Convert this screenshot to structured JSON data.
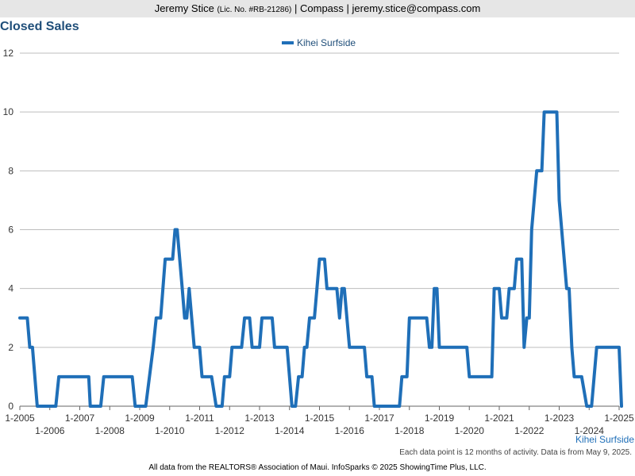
{
  "header": {
    "agent": "Jeremy Stice",
    "license": "(Lic. No. #RB-21286)",
    "brokerage_email": "| Compass | jeremy.stice@compass.com"
  },
  "chart_data": {
    "type": "line",
    "title": "Closed Sales",
    "series": [
      {
        "name": "Kihei Surfside",
        "color": "#1f6fb8",
        "points": [
          [
            2005.0,
            3
          ],
          [
            2005.25,
            3
          ],
          [
            2005.33,
            2
          ],
          [
            2005.42,
            2
          ],
          [
            2005.58,
            0
          ],
          [
            2006.2,
            0
          ],
          [
            2006.3,
            1
          ],
          [
            2007.3,
            1
          ],
          [
            2007.35,
            0
          ],
          [
            2007.7,
            0
          ],
          [
            2007.8,
            1
          ],
          [
            2008.75,
            1
          ],
          [
            2008.85,
            0
          ],
          [
            2009.2,
            0
          ],
          [
            2009.45,
            2
          ],
          [
            2009.55,
            3
          ],
          [
            2009.7,
            3
          ],
          [
            2009.85,
            5
          ],
          [
            2010.1,
            5
          ],
          [
            2010.18,
            6
          ],
          [
            2010.25,
            6
          ],
          [
            2010.42,
            4
          ],
          [
            2010.5,
            3
          ],
          [
            2010.57,
            3
          ],
          [
            2010.65,
            4
          ],
          [
            2010.82,
            2
          ],
          [
            2011.0,
            2
          ],
          [
            2011.08,
            1
          ],
          [
            2011.4,
            1
          ],
          [
            2011.55,
            0
          ],
          [
            2011.75,
            0
          ],
          [
            2011.83,
            1
          ],
          [
            2012.0,
            1
          ],
          [
            2012.08,
            2
          ],
          [
            2012.4,
            2
          ],
          [
            2012.5,
            3
          ],
          [
            2012.67,
            3
          ],
          [
            2012.75,
            2
          ],
          [
            2013.0,
            2
          ],
          [
            2013.08,
            3
          ],
          [
            2013.42,
            3
          ],
          [
            2013.5,
            2
          ],
          [
            2013.92,
            2
          ],
          [
            2014.08,
            0
          ],
          [
            2014.2,
            0
          ],
          [
            2014.3,
            1
          ],
          [
            2014.42,
            1
          ],
          [
            2014.5,
            2
          ],
          [
            2014.58,
            2
          ],
          [
            2014.67,
            3
          ],
          [
            2014.83,
            3
          ],
          [
            2015.0,
            5
          ],
          [
            2015.17,
            5
          ],
          [
            2015.25,
            4
          ],
          [
            2015.58,
            4
          ],
          [
            2015.67,
            3
          ],
          [
            2015.75,
            4
          ],
          [
            2015.83,
            4
          ],
          [
            2016.0,
            2
          ],
          [
            2016.5,
            2
          ],
          [
            2016.58,
            1
          ],
          [
            2016.75,
            1
          ],
          [
            2016.83,
            0
          ],
          [
            2017.67,
            0
          ],
          [
            2017.75,
            1
          ],
          [
            2017.92,
            1
          ],
          [
            2018.0,
            3
          ],
          [
            2018.58,
            3
          ],
          [
            2018.67,
            2
          ],
          [
            2018.75,
            2
          ],
          [
            2018.83,
            4
          ],
          [
            2018.92,
            4
          ],
          [
            2019.0,
            2
          ],
          [
            2019.92,
            2
          ],
          [
            2020.0,
            1
          ],
          [
            2020.75,
            1
          ],
          [
            2020.83,
            4
          ],
          [
            2021.0,
            4
          ],
          [
            2021.08,
            3
          ],
          [
            2021.25,
            3
          ],
          [
            2021.33,
            4
          ],
          [
            2021.5,
            4
          ],
          [
            2021.58,
            5
          ],
          [
            2021.75,
            5
          ],
          [
            2021.83,
            2
          ],
          [
            2021.92,
            3
          ],
          [
            2022.0,
            3
          ],
          [
            2022.08,
            6
          ],
          [
            2022.25,
            8
          ],
          [
            2022.42,
            8
          ],
          [
            2022.5,
            10
          ],
          [
            2022.92,
            10
          ],
          [
            2023.0,
            7
          ],
          [
            2023.25,
            4
          ],
          [
            2023.33,
            4
          ],
          [
            2023.42,
            2
          ],
          [
            2023.5,
            1
          ],
          [
            2023.75,
            1
          ],
          [
            2023.92,
            0
          ],
          [
            2024.08,
            0
          ],
          [
            2024.25,
            2
          ],
          [
            2024.92,
            2
          ],
          [
            2025.0,
            2
          ],
          [
            2025.08,
            0
          ]
        ]
      }
    ],
    "x_tick_labels": [
      "1-2005",
      "1-2006",
      "1-2007",
      "1-2008",
      "1-2009",
      "1-2010",
      "1-2011",
      "1-2012",
      "1-2013",
      "1-2014",
      "1-2015",
      "1-2016",
      "1-2017",
      "1-2018",
      "1-2019",
      "1-2020",
      "1-2021",
      "1-2022",
      "1-2023",
      "1-2024",
      "1-2025"
    ],
    "y_ticks": [
      0,
      2,
      4,
      6,
      8,
      10,
      12
    ],
    "xlim": [
      "1-2005",
      "1-2025"
    ],
    "ylim": [
      0,
      12
    ],
    "grid": "horizontal",
    "legend_position": "top-center",
    "series_label_bottom_right": "Kihei Surfside"
  },
  "footer": {
    "note": "Each data point is 12 months of activity. Data is from May 9, 2025.",
    "credit": "All data from the REALTORS® Association of Maui. InfoSparks © 2025 ShowingTime Plus, LLC."
  }
}
